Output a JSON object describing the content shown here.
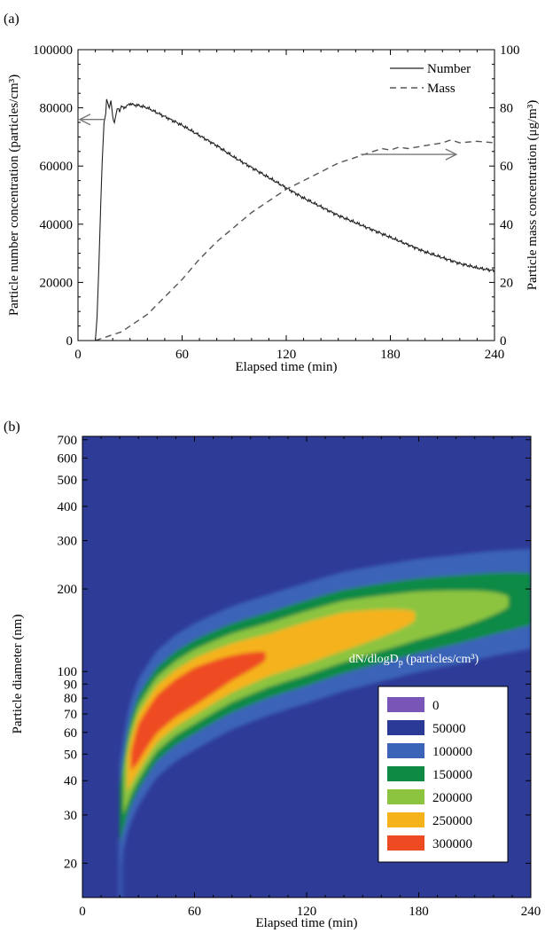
{
  "chart_data": [
    {
      "panel_label": "(a)",
      "type": "line",
      "xlabel": "Elapsed time (min)",
      "ylabel_left": "Particle number concentration (particles/cm³)",
      "ylabel_right": "Particle mass concentration (μg/m³)",
      "xlim": [
        0,
        240
      ],
      "ylim_left": [
        0,
        100000
      ],
      "ylim_right": [
        0,
        100
      ],
      "xticks": [
        0,
        60,
        120,
        180,
        240
      ],
      "yticks_left": [
        0,
        20000,
        40000,
        60000,
        80000,
        100000
      ],
      "yticks_right": [
        0,
        20,
        40,
        60,
        80,
        100
      ],
      "legend_position": "top-right",
      "series": [
        {
          "name": "Number",
          "axis": "left",
          "style": "solid",
          "x": [
            0,
            10,
            11,
            12,
            13,
            14,
            15,
            16,
            16.5,
            17,
            18,
            19,
            20,
            21,
            22,
            23,
            24,
            25,
            26,
            28,
            30,
            32,
            35,
            40,
            45,
            50,
            55,
            60,
            70,
            80,
            90,
            100,
            110,
            120,
            130,
            140,
            150,
            160,
            170,
            180,
            190,
            200,
            210,
            220,
            230,
            240
          ],
          "y": [
            0,
            0,
            8000,
            25000,
            45000,
            62000,
            75000,
            78000,
            83000,
            82000,
            80000,
            82500,
            77000,
            75000,
            78000,
            80000,
            79000,
            80500,
            80000,
            80500,
            81500,
            81000,
            80800,
            80000,
            78500,
            77000,
            75500,
            74000,
            70500,
            67000,
            63000,
            59500,
            56000,
            52500,
            49000,
            46000,
            43000,
            40500,
            38000,
            35500,
            33000,
            30500,
            28500,
            26500,
            25000,
            24000
          ]
        },
        {
          "name": "Mass",
          "axis": "right",
          "style": "dashed",
          "x": [
            10,
            15,
            20,
            25,
            30,
            40,
            50,
            60,
            70,
            80,
            90,
            100,
            110,
            120,
            130,
            140,
            150,
            160,
            170,
            175,
            180,
            185,
            190,
            195,
            200,
            210,
            215,
            220,
            230,
            240
          ],
          "y": [
            0,
            1,
            2,
            3,
            5,
            9,
            15,
            21,
            28,
            34,
            39,
            44,
            48,
            52,
            55,
            58,
            61,
            63,
            65,
            66,
            65.5,
            66.5,
            66,
            66.5,
            67,
            68,
            69,
            68,
            68.5,
            68
          ]
        }
      ],
      "annotations": [
        {
          "type": "arrow",
          "direction": "left",
          "points_to_axis": "left",
          "at_y_left": 76000
        },
        {
          "type": "arrow",
          "direction": "right",
          "points_to_axis": "right",
          "at_y_right": 64
        }
      ]
    },
    {
      "panel_label": "(b)",
      "type": "heatmap",
      "xlabel": "Elapsed time (min)",
      "ylabel": "Particle diameter (nm)",
      "xlim": [
        0,
        240
      ],
      "ylim": [
        15,
        720
      ],
      "y_scale": "log",
      "xticks": [
        0,
        60,
        120,
        180,
        240
      ],
      "yticks": [
        20,
        30,
        40,
        50,
        60,
        70,
        80,
        90,
        100,
        200,
        300,
        400,
        500,
        600,
        700
      ],
      "colorbar_title": "dN/dlogD",
      "colorbar_title_sub": "p",
      "colorbar_title_suffix": " (particles/cm³)",
      "legend_position": "bottom-right",
      "levels": [
        {
          "label": "0",
          "color": "#7a55b8"
        },
        {
          "label": "50000",
          "color": "#2b3a97"
        },
        {
          "label": "100000",
          "color": "#3b63b7"
        },
        {
          "label": "150000",
          "color": "#0e8a45"
        },
        {
          "label": "200000",
          "color": "#8cc43f"
        },
        {
          "label": "250000",
          "color": "#f5b21a"
        },
        {
          "label": "300000",
          "color": "#ee4b22"
        }
      ],
      "background_color": "#2e3b97",
      "mode_diameter_curve": {
        "time": [
          20,
          25,
          30,
          40,
          50,
          60,
          80,
          100,
          120,
          140,
          160,
          180,
          200,
          220,
          240
        ],
        "diameter": [
          30,
          45,
          55,
          70,
          80,
          88,
          103,
          115,
          127,
          140,
          150,
          160,
          168,
          177,
          184
        ],
        "peak_concentration": [
          150000,
          250000,
          300000,
          300000,
          300000,
          300000,
          270000,
          250000,
          250000,
          240000,
          220000,
          200000,
          180000,
          160000,
          140000
        ]
      }
    }
  ]
}
